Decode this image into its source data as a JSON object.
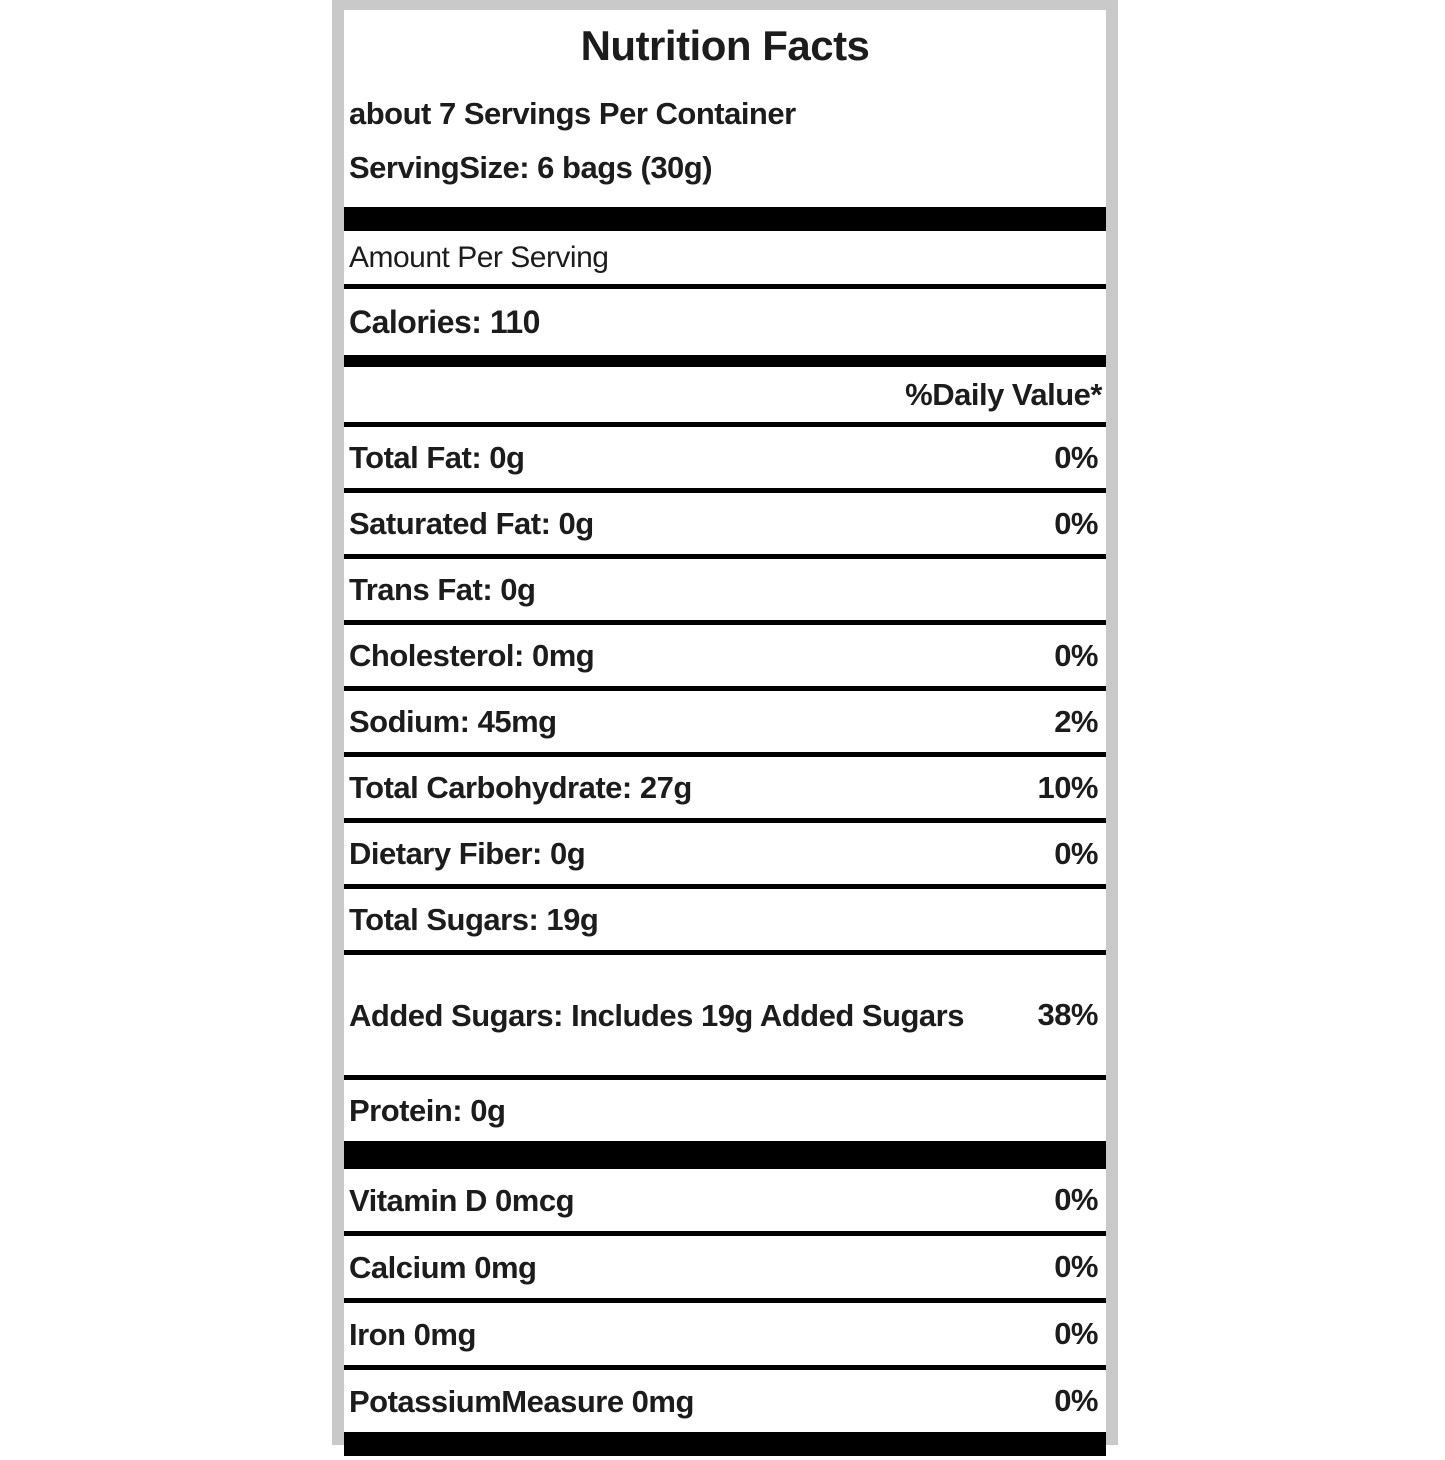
{
  "label": {
    "title": "Nutrition Facts",
    "servings_per_container": "about 7 Servings Per Container",
    "serving_size": "ServingSize: 6 bags (30g)",
    "amount_per_serving": "Amount Per Serving",
    "calories": "Calories: 110",
    "daily_value_header": "%Daily Value*",
    "nutrient_rows": [
      {
        "name": "Total Fat: 0g",
        "dv": "0%",
        "tall": false
      },
      {
        "name": "Saturated Fat: 0g",
        "dv": "0%",
        "tall": false
      },
      {
        "name": "Trans Fat: 0g",
        "dv": "",
        "tall": false
      },
      {
        "name": "Cholesterol: 0mg",
        "dv": "0%",
        "tall": false
      },
      {
        "name": "Sodium: 45mg",
        "dv": "2%",
        "tall": false
      },
      {
        "name": "Total Carbohydrate: 27g",
        "dv": "10%",
        "tall": false
      },
      {
        "name": "Dietary Fiber: 0g",
        "dv": "0%",
        "tall": false
      },
      {
        "name": "Total Sugars: 19g",
        "dv": "",
        "tall": false
      },
      {
        "name": "Added Sugars: Includes 19g Added Sugars",
        "dv": "38%",
        "tall": true
      },
      {
        "name": "Protein: 0g",
        "dv": "",
        "tall": false
      }
    ],
    "micronutrient_rows": [
      {
        "name": "Vitamin D 0mcg",
        "dv": "0%"
      },
      {
        "name": "Calcium 0mg",
        "dv": "0%"
      },
      {
        "name": "Iron 0mg",
        "dv": "0%"
      },
      {
        "name": "PotassiumMeasure 0mg",
        "dv": "0%"
      }
    ]
  },
  "colors": {
    "frame_gray": "#c9c9c9",
    "label_background": "#ffffff",
    "text": "#1c1c1c",
    "bar_black": "#000000"
  }
}
